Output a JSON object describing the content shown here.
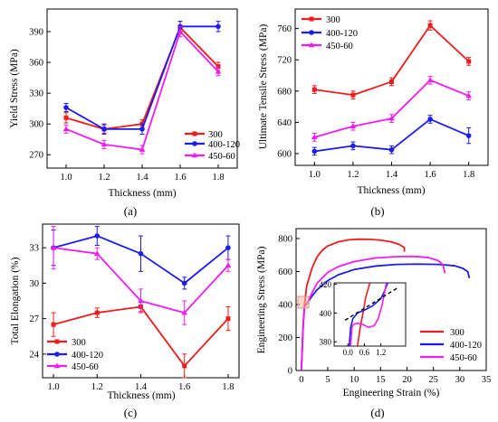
{
  "colors": {
    "s300": "#ee1c1c",
    "s400": "#1c1cee",
    "s450": "#f21cf2",
    "inset_dash": "#000000",
    "inset_box": "#f5b6a0"
  },
  "chart_data": [
    {
      "type": "line",
      "caption": "(a)",
      "xlabel": "Thickness (mm)",
      "ylabel": "Yield Stress (MPa)",
      "xlim": [
        0.9,
        1.9
      ],
      "ylim": [
        257,
        412
      ],
      "xticks": [
        1.0,
        1.2,
        1.4,
        1.6,
        1.8
      ],
      "yticks": [
        270,
        300,
        330,
        360,
        390
      ],
      "legend_position": "bottom-right",
      "x": [
        1.0,
        1.2,
        1.4,
        1.6,
        1.8
      ],
      "series": [
        {
          "name": "300",
          "color": "s300",
          "values": [
            306,
            295,
            300,
            394,
            356
          ],
          "err": [
            5,
            4,
            4,
            6,
            4
          ]
        },
        {
          "name": "400-120",
          "color": "s400",
          "values": [
            316,
            295,
            295,
            395,
            395
          ],
          "err": [
            4,
            5,
            5,
            5,
            5
          ]
        },
        {
          "name": "450-60",
          "color": "s450",
          "values": [
            295,
            280,
            275,
            390,
            351
          ],
          "err": [
            4,
            4,
            4,
            5,
            4
          ]
        }
      ]
    },
    {
      "type": "line",
      "caption": "(b)",
      "xlabel": "Thickness (mm)",
      "ylabel": "Ultimate Tensile Stress (MPa)",
      "xlim": [
        0.9,
        1.9
      ],
      "ylim": [
        585,
        785
      ],
      "xticks": [
        1.0,
        1.2,
        1.4,
        1.6,
        1.8
      ],
      "yticks": [
        600,
        640,
        680,
        720,
        760
      ],
      "legend_position": "top-left",
      "x": [
        1.0,
        1.2,
        1.4,
        1.6,
        1.8
      ],
      "series": [
        {
          "name": "300",
          "color": "s300",
          "values": [
            682,
            675,
            692,
            764,
            718
          ],
          "err": [
            5,
            5,
            5,
            6,
            5
          ]
        },
        {
          "name": "400-120",
          "color": "s400",
          "values": [
            603,
            610,
            605,
            644,
            623
          ],
          "err": [
            5,
            5,
            5,
            5,
            10
          ]
        },
        {
          "name": "450-60",
          "color": "s450",
          "values": [
            621,
            635,
            645,
            694,
            674
          ],
          "err": [
            5,
            5,
            5,
            5,
            5
          ]
        }
      ]
    },
    {
      "type": "line",
      "caption": "(c)",
      "xlabel": "Thickness (mm)",
      "ylabel": "Total Elongation (%)",
      "xlim": [
        0.95,
        1.85
      ],
      "ylim": [
        22,
        35
      ],
      "xticks": [
        1.0,
        1.2,
        1.4,
        1.6,
        1.8
      ],
      "yticks": [
        24,
        27,
        30,
        33
      ],
      "legend_position": "bottom-left",
      "x": [
        1.0,
        1.2,
        1.4,
        1.6,
        1.8
      ],
      "series": [
        {
          "name": "300",
          "color": "s300",
          "values": [
            26.5,
            27.5,
            28.0,
            23.0,
            27.0
          ],
          "err": [
            1.0,
            0.4,
            0.4,
            1.0,
            1.0
          ]
        },
        {
          "name": "400-120",
          "color": "s400",
          "values": [
            33.0,
            34.0,
            32.5,
            30.0,
            33.0
          ],
          "err": [
            1.5,
            0.8,
            1.5,
            0.5,
            1.0
          ]
        },
        {
          "name": "450-60",
          "color": "s450",
          "values": [
            33.0,
            32.5,
            28.5,
            27.5,
            31.5
          ],
          "err": [
            1.8,
            0.5,
            1.0,
            1.0,
            0.5
          ]
        }
      ]
    },
    {
      "type": "line",
      "caption": "(d)",
      "xlabel": "Engineering Strain (%)",
      "ylabel": "Engineering Stress (MPa)",
      "xlim": [
        -1,
        35
      ],
      "ylim": [
        0,
        860
      ],
      "xticks": [
        0,
        5,
        10,
        15,
        20,
        25,
        30,
        35
      ],
      "yticks": [
        0,
        200,
        400,
        600,
        800
      ],
      "legend_position": "bottom-right",
      "series": [
        {
          "name": "300",
          "color": "s300",
          "x": [
            0,
            0.35,
            0.6,
            1,
            2,
            3,
            4,
            5,
            7,
            9,
            11,
            13,
            15,
            17,
            18.5,
            19.5,
            19.5
          ],
          "values": [
            0,
            280,
            400,
            510,
            620,
            690,
            730,
            755,
            780,
            792,
            796,
            795,
            790,
            780,
            765,
            745,
            720
          ]
        },
        {
          "name": "400-120",
          "color": "s400",
          "x": [
            0,
            0.35,
            0.6,
            1,
            2,
            3,
            5,
            7,
            10,
            14,
            18,
            22,
            26,
            29,
            30.5,
            31.5,
            31.8
          ],
          "values": [
            0,
            280,
            385,
            405,
            450,
            490,
            545,
            580,
            612,
            633,
            643,
            645,
            643,
            635,
            620,
            600,
            560
          ]
        },
        {
          "name": "450-60",
          "color": "s450",
          "x": [
            0,
            0.35,
            0.6,
            1,
            2,
            3,
            5,
            7,
            10,
            14,
            18,
            21,
            24,
            26,
            26.8,
            27.2
          ],
          "values": [
            0,
            280,
            385,
            400,
            470,
            530,
            595,
            630,
            660,
            682,
            690,
            692,
            685,
            665,
            640,
            590
          ]
        }
      ],
      "inset": {
        "xlim": [
          -0.5,
          2.1
        ],
        "ylim": [
          377,
          421
        ],
        "xticks": [
          0.0,
          0.6,
          1.2
        ],
        "yticks": [
          380,
          400,
          420
        ],
        "series": [
          {
            "name": "300",
            "color": "s300",
            "x": [
              0.35,
              0.45,
              0.55,
              0.65,
              0.8
            ],
            "values": [
              377,
              390,
              400,
              411,
              421
            ]
          },
          {
            "name": "400-120",
            "color": "s400",
            "x": [
              0.05,
              0.1,
              0.18,
              0.35,
              0.6,
              0.9,
              1.2,
              1.35,
              1.45
            ],
            "values": [
              377,
              390,
              396,
              400,
              402,
              405,
              410,
              416,
              421
            ]
          },
          {
            "name": "450-60",
            "color": "s450",
            "x": [
              0.1,
              0.15,
              0.2,
              0.35,
              0.55,
              0.75,
              0.95,
              1.1,
              1.25,
              1.4
            ],
            "values": [
              377,
              390,
              392,
              393,
              392,
              390,
              391,
              396,
              406,
              421
            ]
          }
        ],
        "dash_lines": [
          {
            "x": [
              -0.1,
              1.85
            ],
            "values": [
              395,
              418
            ]
          }
        ]
      }
    }
  ]
}
